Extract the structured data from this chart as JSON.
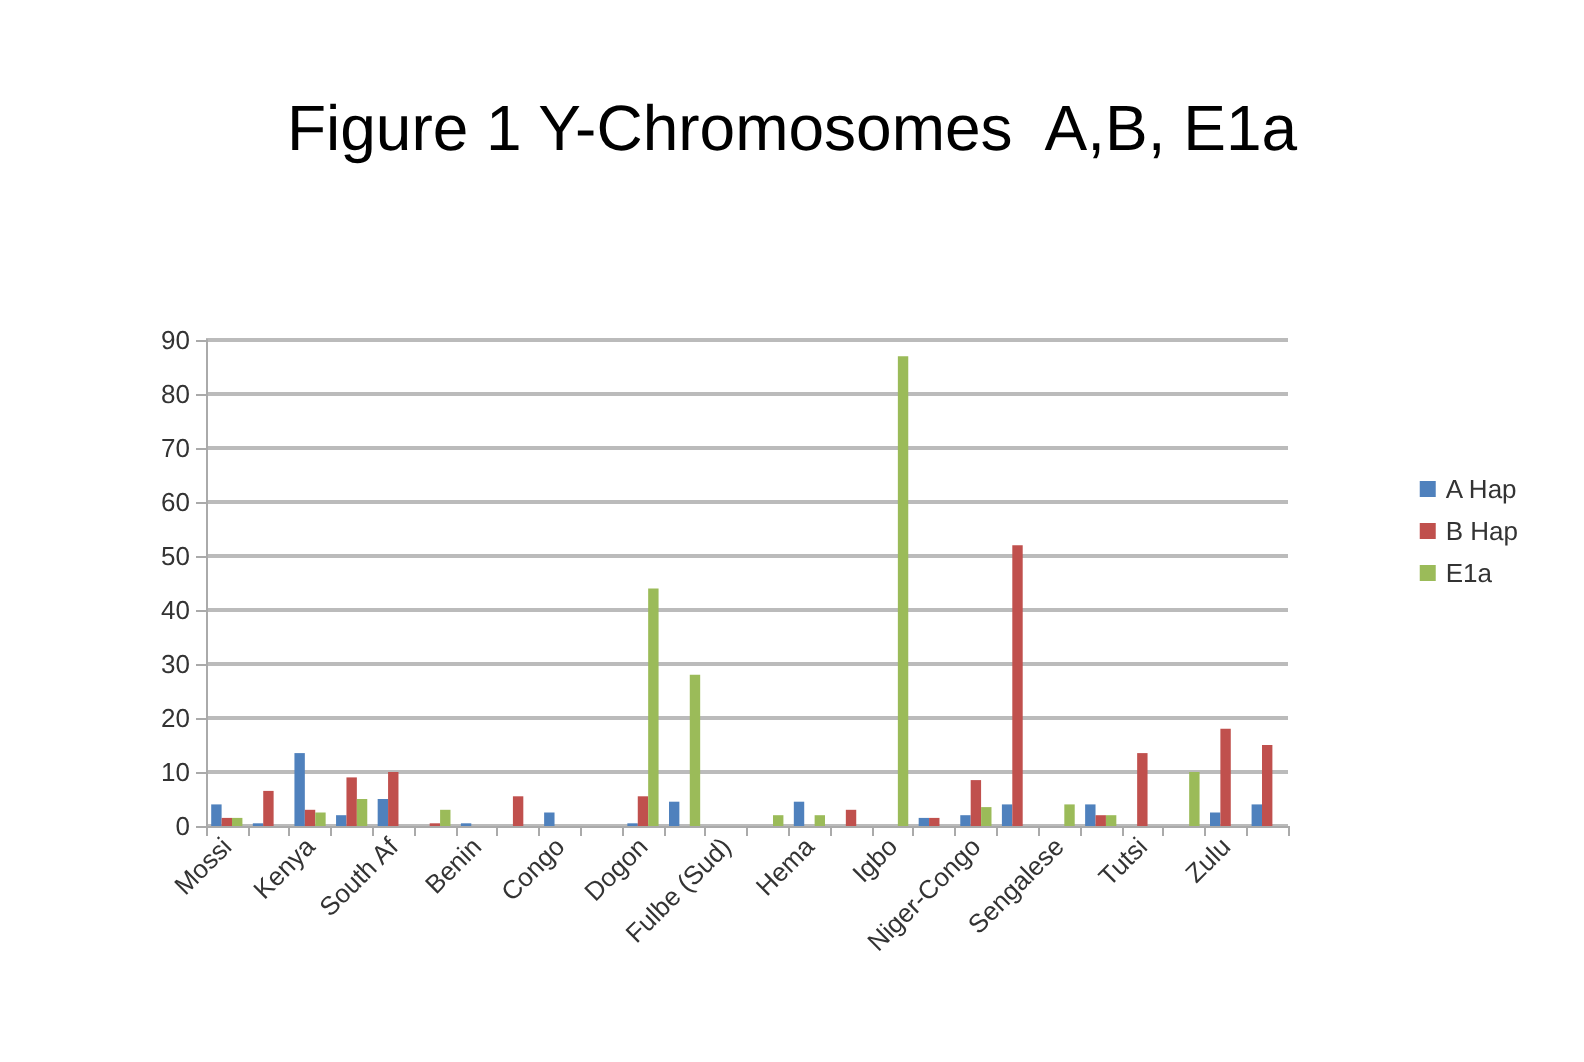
{
  "chart_data": {
    "type": "bar",
    "title": "Figure 1 Y-Chromosomes  A,B, E1a",
    "categories": [
      "Mossi",
      null,
      "Kenya",
      null,
      "South Af",
      null,
      "Benin",
      null,
      "Congo",
      null,
      "Dogon",
      null,
      "Fulbe (Sud)",
      null,
      "Hema",
      null,
      "Igbo",
      null,
      "Niger-Congo",
      null,
      "Sengalese",
      null,
      "Tutsi",
      null,
      "Zulu",
      null
    ],
    "series": [
      {
        "name": "A Hap",
        "color": "#4f81bd",
        "values": [
          4,
          0.5,
          13.5,
          2,
          5,
          null,
          0.5,
          null,
          2.5,
          null,
          0.5,
          4.5,
          null,
          null,
          4.5,
          null,
          null,
          1.5,
          2,
          4,
          null,
          4,
          null,
          null,
          2.5,
          4
        ]
      },
      {
        "name": "B Hap",
        "color": "#c0504d",
        "values": [
          1.5,
          6.5,
          3,
          9,
          10,
          0.5,
          null,
          5.5,
          null,
          null,
          5.5,
          null,
          null,
          null,
          null,
          3,
          null,
          1.5,
          8.5,
          52,
          null,
          2,
          13.5,
          null,
          18,
          15
        ]
      },
      {
        "name": "E1a",
        "color": "#9bbb59",
        "values": [
          1.5,
          null,
          2.5,
          5,
          null,
          3,
          null,
          null,
          null,
          null,
          44,
          28,
          null,
          2,
          2,
          null,
          87,
          null,
          3.5,
          null,
          4,
          2,
          null,
          10,
          null,
          null
        ]
      }
    ],
    "ylim": [
      0,
      90
    ],
    "yticks": [
      0,
      10,
      20,
      30,
      40,
      50,
      60,
      70,
      80,
      90
    ],
    "grid": "y",
    "legend": "right"
  }
}
